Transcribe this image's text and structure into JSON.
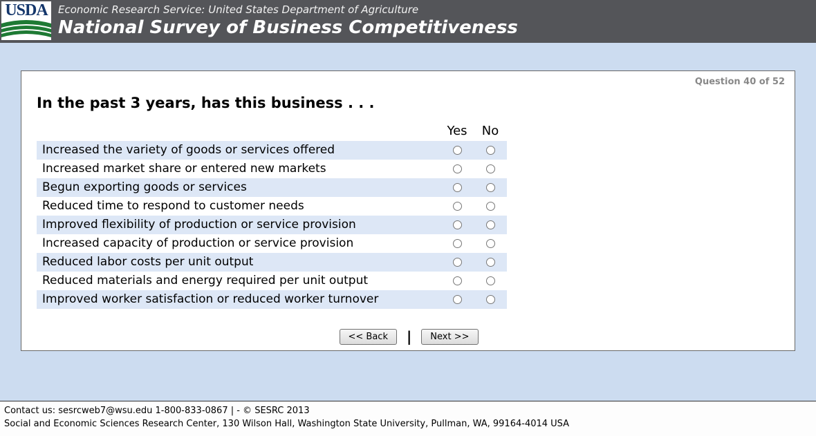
{
  "header": {
    "logo_text": "USDA",
    "agency_line": "Economic Research Service: United States Department of Agriculture",
    "survey_title": "National Survey of Business Competitiveness"
  },
  "question": {
    "progress": "Question 40 of 52",
    "title": "In the past 3 years, has this business . . .",
    "columns": [
      "Yes",
      "No"
    ],
    "rows": [
      "Increased the variety of goods or services offered",
      "Increased market share or entered new markets",
      "Begun exporting goods or services",
      "Reduced time to respond to customer needs",
      "Improved flexibility of production or service provision",
      "Increased capacity of production or service provision",
      "Reduced labor costs per unit output",
      "Reduced materials and energy required per unit output",
      "Improved worker satisfaction or reduced worker turnover"
    ]
  },
  "nav": {
    "back_label": "<< Back",
    "separator": "|",
    "next_label": "Next >>"
  },
  "footer": {
    "line1": "Contact us: sesrcweb7@wsu.edu 1-800-833-0867 | - © SESRC 2013",
    "line2": "Social and Economic Sciences Research Center, 130 Wilson Hall, Washington State University, Pullman, WA, 99164-4014 USA"
  },
  "colors": {
    "header_bg": "#545559",
    "page_bg": "#ccdcf0",
    "row_alt_bg": "#dde7f6",
    "logo_blue": "#14366b",
    "logo_green": "#1e7a34"
  }
}
